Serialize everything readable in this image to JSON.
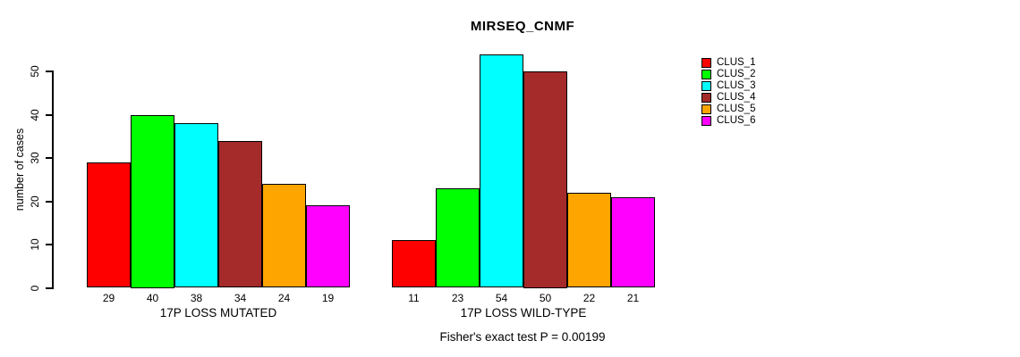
{
  "title": "MIRSEQ_CNMF",
  "chart_data": {
    "type": "bar",
    "title": "MIRSEQ_CNMF",
    "xlabel": "",
    "ylabel": "number of cases",
    "yticks": [
      0,
      10,
      20,
      30,
      40,
      50
    ],
    "ylim": [
      0,
      54
    ],
    "grid": false,
    "legend_position": "right-outside",
    "series_names": [
      "CLUS_1",
      "CLUS_2",
      "CLUS_3",
      "CLUS_4",
      "CLUS_5",
      "CLUS_6"
    ],
    "colors": [
      "#FF0000",
      "#00FF00",
      "#00FFFF",
      "#A52A2A",
      "#FFA500",
      "#FF00FF"
    ],
    "groups": [
      {
        "label": "17P LOSS MUTATED",
        "values": [
          29,
          40,
          38,
          34,
          24,
          19
        ]
      },
      {
        "label": "17P LOSS WILD-TYPE",
        "values": [
          11,
          23,
          54,
          50,
          22,
          21
        ]
      }
    ],
    "bar_value_labels_shown": true,
    "annotation": "Fisher's exact test P = 0.00199"
  }
}
